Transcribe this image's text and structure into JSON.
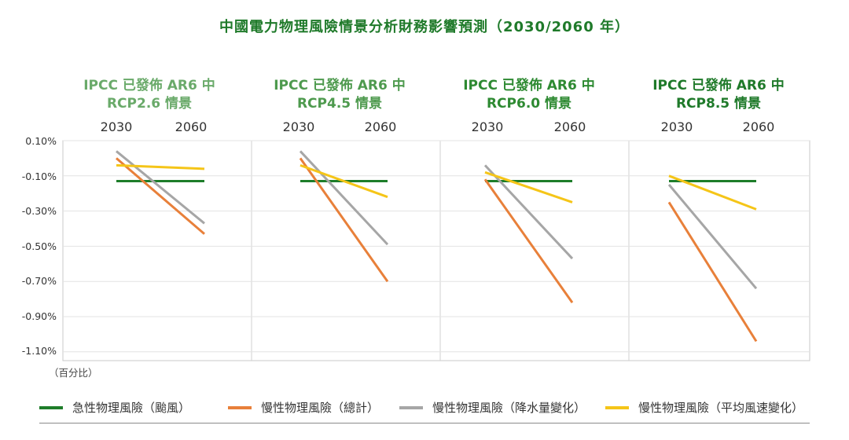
{
  "chart_data": {
    "type": "line",
    "title": "中國電力物理風險情景分析財務影響預測（2030/2060 年）",
    "ylabel_unit": "（百分比）",
    "ylim": [
      -1.15,
      0.1
    ],
    "yticks": [
      "0.10%",
      "-0.10%",
      "-0.30%",
      "-0.50%",
      "-0.70%",
      "-0.90%",
      "-1.10%"
    ],
    "ytick_values": [
      0.1,
      -0.1,
      -0.3,
      -0.5,
      -0.7,
      -0.9,
      -1.1
    ],
    "x": [
      "2030",
      "2060"
    ],
    "panels": [
      {
        "title_line1": "IPCC 已發佈 AR6 中",
        "title_line2": "RCP2.6 情景",
        "title_color": "#6aaa6a",
        "series_values": [
          [
            -0.13,
            -0.13
          ],
          [
            0.0,
            -0.43
          ],
          [
            0.04,
            -0.37
          ],
          [
            -0.04,
            -0.06
          ]
        ]
      },
      {
        "title_line1": "IPCC 已發佈 AR6 中",
        "title_line2": "RCP4.5 情景",
        "title_color": "#4e9a4e",
        "series_values": [
          [
            -0.13,
            -0.13
          ],
          [
            0.0,
            -0.7
          ],
          [
            0.04,
            -0.49
          ],
          [
            -0.04,
            -0.22
          ]
        ]
      },
      {
        "title_line1": "IPCC 已發佈 AR6 中",
        "title_line2": "RCP6.0 情景",
        "title_color": "#2e8a32",
        "series_values": [
          [
            -0.13,
            -0.13
          ],
          [
            -0.12,
            -0.82
          ],
          [
            -0.04,
            -0.57
          ],
          [
            -0.08,
            -0.25
          ]
        ]
      },
      {
        "title_line1": "IPCC 已發佈 AR6 中",
        "title_line2": "RCP8.5 情景",
        "title_color": "#1f7a2a",
        "series_values": [
          [
            -0.13,
            -0.13
          ],
          [
            -0.25,
            -1.04
          ],
          [
            -0.15,
            -0.74
          ],
          [
            -0.1,
            -0.29
          ]
        ]
      }
    ],
    "series": [
      {
        "name": "急性物理風險（颱風）",
        "color": "#1e7d2a"
      },
      {
        "name": "慢性物理風險（總計）",
        "color": "#e8803a"
      },
      {
        "name": "慢性物理風險（降水量變化）",
        "color": "#a6a6a6"
      },
      {
        "name": "慢性物理風險（平均風速變化）",
        "color": "#f5c518"
      }
    ]
  }
}
